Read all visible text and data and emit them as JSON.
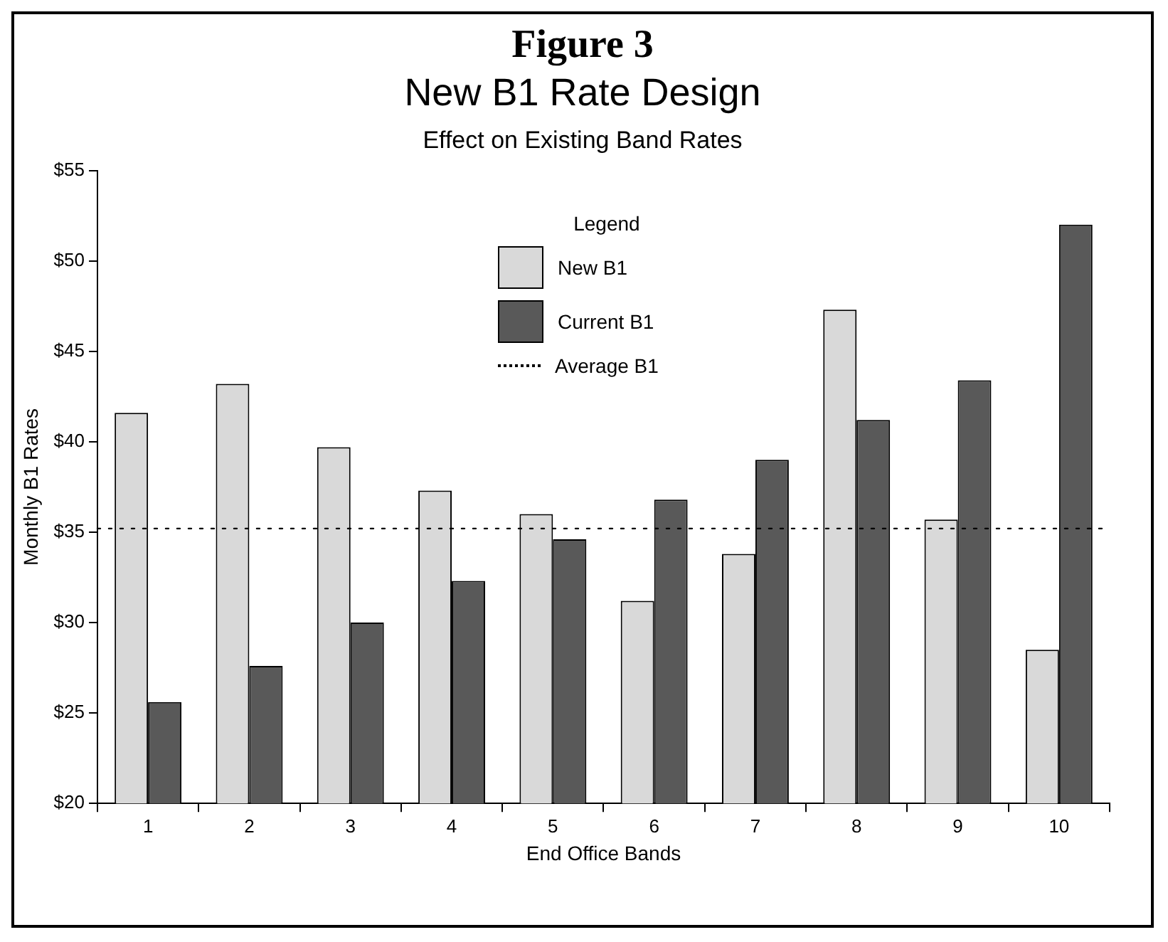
{
  "chart_data": {
    "type": "bar",
    "title": "New B1 Rate Design",
    "subtitle": "Effect on Existing Band Rates",
    "annotations": [
      "Figure 3"
    ],
    "xlabel": "End Office Bands",
    "ylabel": "Monthly B1 Rates",
    "legend_title": "Legend",
    "categories": [
      "1",
      "2",
      "3",
      "4",
      "5",
      "6",
      "7",
      "8",
      "9",
      "10"
    ],
    "series": [
      {
        "name": "New B1",
        "color": "#d9d9d9",
        "values": [
          41.6,
          43.2,
          39.7,
          37.3,
          36.0,
          31.2,
          33.8,
          47.3,
          35.7,
          28.5
        ]
      },
      {
        "name": "Current B1",
        "color": "#595959",
        "values": [
          25.6,
          27.6,
          30.0,
          32.3,
          34.6,
          36.8,
          39.0,
          41.2,
          43.4,
          52.0
        ]
      }
    ],
    "ref_lines": [
      {
        "axis": "y",
        "value": 35.2,
        "label": "Average B1",
        "color": "#000000",
        "line_style": "dotted"
      }
    ],
    "ylim": [
      20,
      55
    ],
    "yticks": [
      {
        "value": 20,
        "label": "$20"
      },
      {
        "value": 25,
        "label": "$25"
      },
      {
        "value": 30,
        "label": "$30"
      },
      {
        "value": 35,
        "label": "$35"
      },
      {
        "value": 40,
        "label": "$40"
      },
      {
        "value": 45,
        "label": "$45"
      },
      {
        "value": 50,
        "label": "$50"
      },
      {
        "value": 55,
        "label": "$55"
      }
    ],
    "legend": "top"
  }
}
